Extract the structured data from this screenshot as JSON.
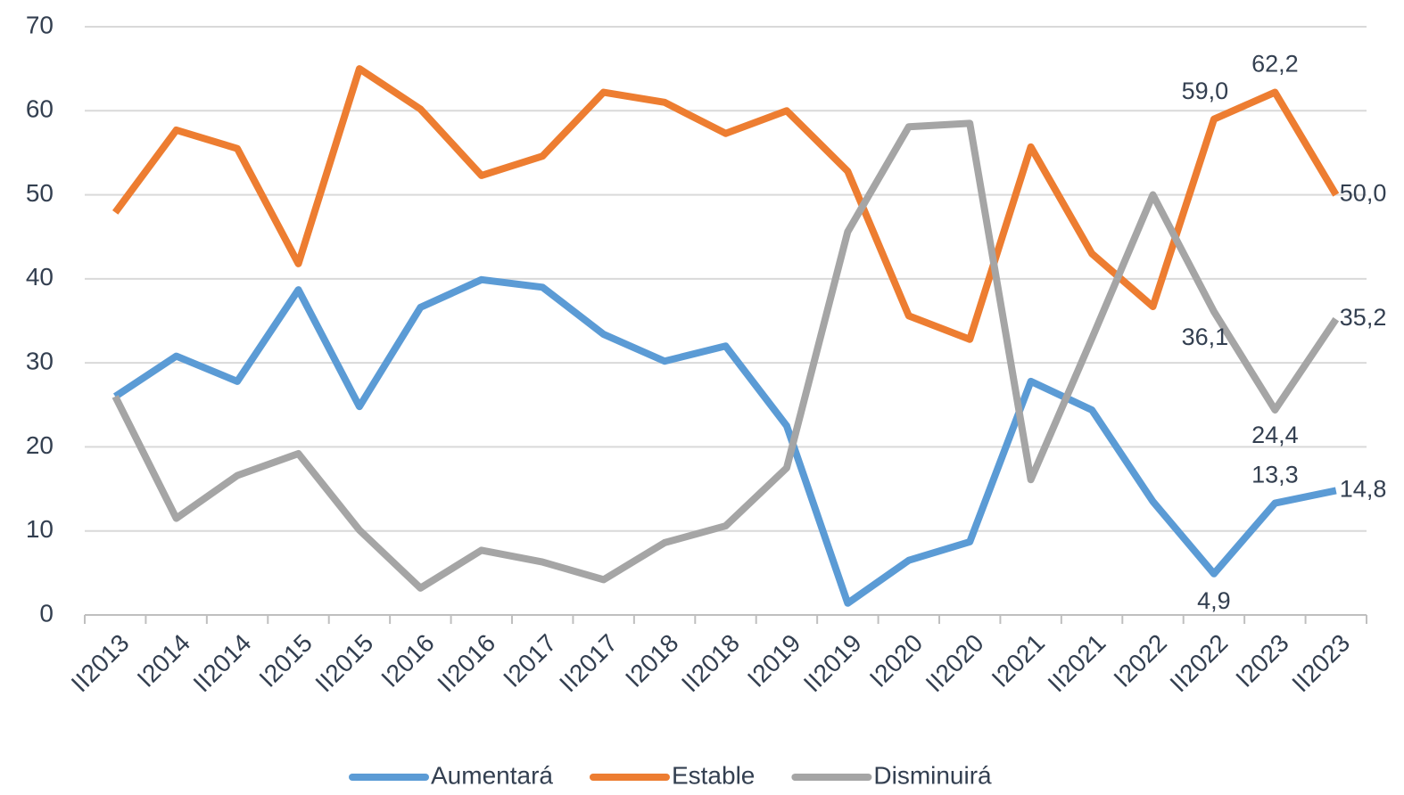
{
  "chart_data": {
    "type": "line",
    "categories": [
      "II2013",
      "I2014",
      "II2014",
      "I2015",
      "II2015",
      "I2016",
      "II2016",
      "I2017",
      "II2017",
      "I2018",
      "II2018",
      "I2019",
      "II2019",
      "I2020",
      "II2020",
      "I2021",
      "II2021",
      "I2022",
      "II2022",
      "I2023",
      "II2023"
    ],
    "series": [
      {
        "name": "Aumentará",
        "color": "#5b9bd5",
        "values": [
          26.0,
          30.8,
          27.8,
          38.7,
          24.8,
          36.6,
          39.9,
          39.0,
          33.4,
          30.2,
          32.0,
          22.5,
          1.4,
          6.5,
          8.7,
          27.8,
          24.4,
          13.5,
          4.9,
          13.3,
          14.8
        ],
        "value_labels": [
          null,
          null,
          null,
          null,
          null,
          null,
          null,
          null,
          null,
          null,
          null,
          null,
          null,
          null,
          null,
          null,
          null,
          null,
          "4,9",
          "13,3",
          "14,8"
        ]
      },
      {
        "name": "Estable",
        "color": "#ed7d31",
        "values": [
          47.9,
          57.7,
          55.5,
          41.8,
          65.0,
          60.2,
          52.3,
          54.6,
          62.2,
          61.0,
          57.3,
          60.0,
          52.8,
          35.6,
          32.8,
          55.7,
          43.0,
          36.7,
          59.0,
          62.2,
          50.0
        ],
        "value_labels": [
          null,
          null,
          null,
          null,
          null,
          null,
          null,
          null,
          null,
          null,
          null,
          null,
          null,
          null,
          null,
          null,
          null,
          null,
          "59,0",
          "62,2",
          "50,0"
        ]
      },
      {
        "name": "Disminuirá",
        "color": "#a5a5a5",
        "values": [
          26.0,
          11.5,
          16.6,
          19.2,
          10.1,
          3.2,
          7.7,
          6.3,
          4.2,
          8.6,
          10.6,
          17.5,
          45.6,
          58.1,
          58.5,
          16.1,
          32.9,
          50.0,
          36.1,
          24.4,
          35.2
        ],
        "value_labels": [
          null,
          null,
          null,
          null,
          null,
          null,
          null,
          null,
          null,
          null,
          null,
          null,
          null,
          null,
          null,
          null,
          null,
          null,
          "36,1",
          "24,4",
          "35,2"
        ]
      }
    ],
    "ylim": [
      0,
      70
    ],
    "yticks": [
      0,
      10,
      20,
      30,
      40,
      50,
      60,
      70
    ],
    "grid": true,
    "legend": "bottom"
  }
}
